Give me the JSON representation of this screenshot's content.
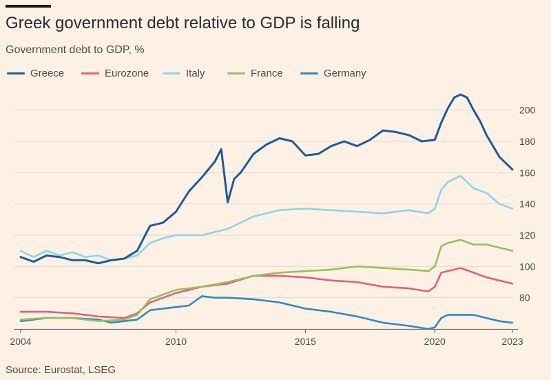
{
  "header": {
    "title": "Greek government debt relative to GDP is falling",
    "subtitle": "Government debt to GDP, %"
  },
  "footer": {
    "source": "Source: Eurostat, LSEG"
  },
  "chart_data": {
    "type": "line",
    "title": "Greek government debt relative to GDP is falling",
    "subtitle": "Government debt to GDP, %",
    "xlabel": "",
    "ylabel": "",
    "xlim": [
      2004,
      2023
    ],
    "ylim": [
      60,
      210
    ],
    "x_ticks": [
      2004,
      2010,
      2015,
      2020,
      2023
    ],
    "y_ticks": [
      60,
      80,
      100,
      120,
      140,
      160,
      180,
      200
    ],
    "y_tick_labels": [
      "",
      "80",
      "100",
      "120",
      "140",
      "160",
      "180",
      "200"
    ],
    "grid": "horizontal",
    "legend_position": "top-left",
    "series": [
      {
        "name": "Greece",
        "color": "#1e5a9a",
        "x": [
          2004,
          2004.5,
          2005,
          2005.5,
          2006,
          2006.5,
          2007,
          2007.5,
          2008,
          2008.5,
          2009,
          2009.5,
          2010,
          2010.5,
          2011,
          2011.5,
          2011.75,
          2012,
          2012.25,
          2012.5,
          2013,
          2013.5,
          2014,
          2014.5,
          2015,
          2015.5,
          2016,
          2016.5,
          2017,
          2017.5,
          2018,
          2018.5,
          2019,
          2019.5,
          2020,
          2020.25,
          2020.5,
          2020.75,
          2021,
          2021.25,
          2021.5,
          2021.75,
          2022,
          2022.5,
          2023
        ],
        "values": [
          106,
          103,
          107,
          106,
          104,
          104,
          102,
          104,
          105,
          110,
          126,
          128,
          135,
          148,
          157,
          167,
          175,
          141,
          156,
          160,
          172,
          178,
          182,
          180,
          171,
          172,
          177,
          180,
          177,
          181,
          187,
          186,
          184,
          180,
          181,
          192,
          201,
          208,
          210,
          208,
          200,
          193,
          184,
          170,
          162
        ]
      },
      {
        "name": "Eurozone",
        "color": "#e0607e",
        "x": [
          2004,
          2005,
          2006,
          2007,
          2008,
          2008.5,
          2009,
          2009.5,
          2010,
          2011,
          2012,
          2013,
          2014,
          2015,
          2016,
          2017,
          2018,
          2019,
          2019.75,
          2020,
          2020.25,
          2021,
          2021.5,
          2022,
          2023
        ],
        "values": [
          71,
          71,
          70,
          68,
          67,
          70,
          77,
          80,
          83,
          87,
          89,
          94,
          94,
          93,
          91,
          90,
          87,
          86,
          84,
          87,
          96,
          99,
          96,
          93,
          89
        ]
      },
      {
        "name": "Italy",
        "color": "#8ad5ea",
        "x": [
          2004,
          2004.5,
          2005,
          2005.5,
          2006,
          2006.5,
          2007,
          2007.5,
          2008,
          2008.5,
          2009,
          2009.5,
          2010,
          2011,
          2012,
          2013,
          2014,
          2015,
          2016,
          2017,
          2018,
          2019,
          2019.75,
          2020,
          2020.25,
          2020.5,
          2021,
          2021.5,
          2022,
          2022.5,
          2023
        ],
        "values": [
          110,
          106,
          110,
          107,
          109,
          106,
          107,
          104,
          105,
          107,
          115,
          118,
          120,
          120,
          124,
          132,
          136,
          137,
          136,
          135,
          134,
          136,
          134,
          137,
          149,
          154,
          158,
          150,
          147,
          140,
          137
        ]
      },
      {
        "name": "France",
        "color": "#96c15a",
        "x": [
          2004,
          2005,
          2006,
          2007,
          2008,
          2008.5,
          2009,
          2009.5,
          2010,
          2011,
          2012,
          2013,
          2014,
          2015,
          2016,
          2017,
          2018,
          2019,
          2019.75,
          2020,
          2020.25,
          2020.5,
          2021,
          2021.5,
          2022,
          2022.5,
          2023
        ],
        "values": [
          66,
          67,
          67,
          65,
          66,
          69,
          79,
          82,
          85,
          87,
          90,
          94,
          96,
          97,
          98,
          100,
          99,
          98,
          97,
          100,
          113,
          115,
          117,
          114,
          114,
          112,
          110
        ]
      },
      {
        "name": "Germany",
        "color": "#2c8ac9",
        "x": [
          2004,
          2005,
          2006,
          2007,
          2007.5,
          2008,
          2008.5,
          2009,
          2010,
          2010.5,
          2011,
          2011.5,
          2012,
          2013,
          2014,
          2015,
          2016,
          2017,
          2018,
          2019,
          2019.75,
          2020,
          2020.25,
          2020.5,
          2021,
          2021.5,
          2022,
          2022.5,
          2023
        ],
        "values": [
          65,
          67,
          67,
          66,
          64,
          65,
          66,
          72,
          74,
          75,
          81,
          80,
          80,
          79,
          77,
          73,
          71,
          68,
          64,
          62,
          60,
          61,
          67,
          69,
          69,
          69,
          67,
          65,
          64
        ]
      }
    ]
  }
}
